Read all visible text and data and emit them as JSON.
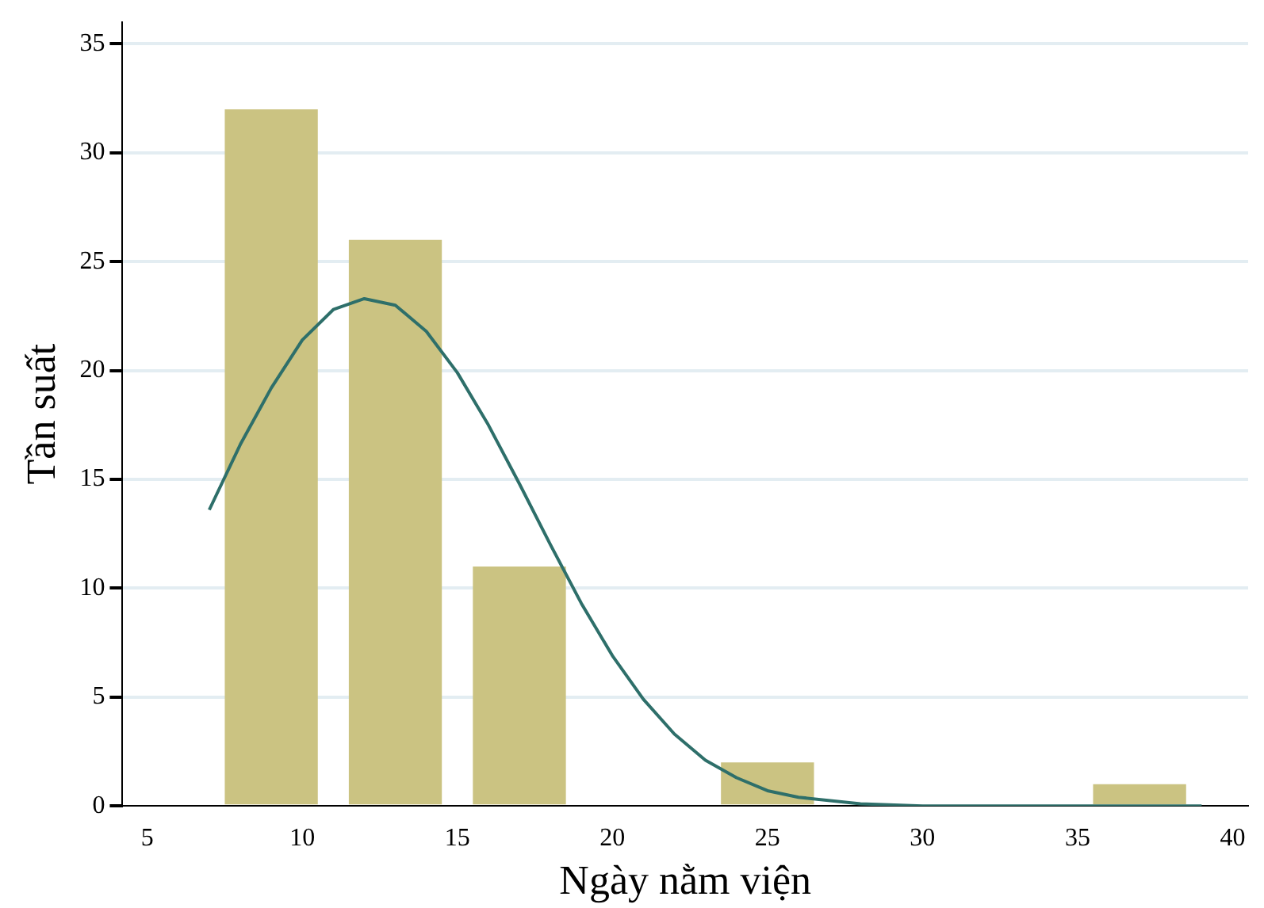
{
  "chart_data": {
    "type": "histogram",
    "xlabel": "Ngày nằm viện",
    "ylabel": "Tần suất",
    "bins": [
      7,
      11,
      15,
      19,
      23,
      27,
      31,
      35,
      39
    ],
    "series": [
      {
        "color": "#cbc382",
        "values": [
          32,
          26,
          11,
          0,
          2,
          0,
          0,
          1
        ]
      },
      {
        "type": "line",
        "color": "#2e6f6a",
        "x": [
          7,
          8,
          9,
          10,
          11,
          12,
          13,
          14,
          15,
          16,
          17,
          18,
          19,
          20,
          21,
          22,
          23,
          24,
          25,
          26,
          28,
          30,
          35,
          39
        ],
        "values": [
          13.6,
          16.6,
          19.2,
          21.4,
          22.8,
          23.3,
          23.0,
          21.8,
          19.9,
          17.5,
          14.8,
          12.0,
          9.3,
          6.9,
          4.9,
          3.3,
          2.1,
          1.3,
          0.7,
          0.4,
          0.1,
          0,
          0,
          0
        ]
      }
    ],
    "xlim": [
      4.2,
      40.5
    ],
    "xticks": [
      5,
      10,
      15,
      20,
      25,
      30,
      35,
      40
    ],
    "ylim": [
      0,
      36
    ],
    "yticks": [
      0,
      5,
      10,
      15,
      20,
      25,
      30,
      35
    ],
    "grid": "y",
    "legend": false,
    "marker": "none",
    "line_style": "solid"
  }
}
